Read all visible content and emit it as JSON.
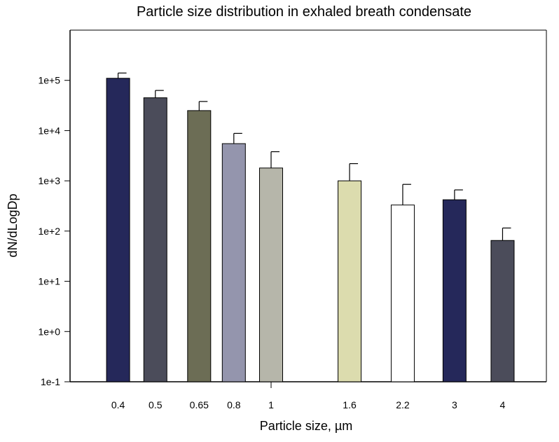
{
  "chart_data": {
    "type": "bar",
    "title": "Particle size distribution in exhaled breath condensate",
    "xlabel": "Particle size, µm",
    "ylabel": "dN/dLogDp",
    "yscale": "log",
    "ylim": [
      0.1,
      1000000
    ],
    "y_ticks": [
      0.1,
      1,
      10,
      100,
      1000,
      10000,
      100000
    ],
    "y_tick_labels": [
      "1e-1",
      "1e+0",
      "1e+1",
      "1e+2",
      "1e+3",
      "1e+4",
      "1e+5"
    ],
    "xscale": "log",
    "xlim": [
      0.3,
      5.2
    ],
    "x_ticks": [
      1
    ],
    "grid": false,
    "legend": "none",
    "categories": [
      "0.4",
      "0.5",
      "0.65",
      "0.8",
      "1",
      "1.6",
      "2.2",
      "3",
      "4"
    ],
    "x": [
      0.4,
      0.5,
      0.65,
      0.8,
      1.0,
      1.6,
      2.2,
      3.0,
      4.0
    ],
    "values": [
      110000,
      45000,
      25000,
      5500,
      1800,
      1000,
      330,
      420,
      65
    ],
    "error_upper": [
      140000,
      63000,
      38000,
      8800,
      3800,
      2200,
      850,
      660,
      115
    ],
    "bars": [
      {
        "category": "0.4",
        "value": 110000,
        "error_upper": 140000,
        "color": "#25285a"
      },
      {
        "category": "0.5",
        "value": 45000,
        "error_upper": 63000,
        "color": "#4b4c5a"
      },
      {
        "category": "0.65",
        "value": 25000,
        "error_upper": 38000,
        "color": "#6c6d55"
      },
      {
        "category": "0.8",
        "value": 5500,
        "error_upper": 8800,
        "color": "#9495ad"
      },
      {
        "category": "1",
        "value": 1800,
        "error_upper": 3800,
        "color": "#b6b6aa"
      },
      {
        "category": "1.6",
        "value": 1000,
        "error_upper": 2200,
        "color": "#dcdcae"
      },
      {
        "category": "2.2",
        "value": 330,
        "error_upper": 850,
        "color": "#ffffff"
      },
      {
        "category": "3",
        "value": 420,
        "error_upper": 660,
        "color": "#25285a"
      },
      {
        "category": "4",
        "value": 65,
        "error_upper": 115,
        "color": "#4b4c5a"
      }
    ]
  }
}
